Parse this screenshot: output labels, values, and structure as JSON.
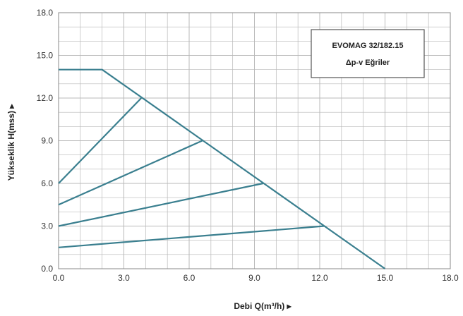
{
  "chart_data": {
    "type": "line",
    "title": "EVOMAG 32/182.15",
    "subtitle": "Δp-v Eğriler",
    "xlabel": "Debi Q(m³/h) ▸",
    "ylabel": "Yükseklik H(mss) ▸",
    "xlim": [
      0,
      18
    ],
    "ylim": [
      0,
      18
    ],
    "x_ticks": [
      "0.0",
      "3.0",
      "6.0",
      "9.0",
      "12.0",
      "15.0",
      "18.0"
    ],
    "y_ticks": [
      "0.0",
      "3.0",
      "6.0",
      "9.0",
      "12.0",
      "15.0",
      "18.0"
    ],
    "grid": true,
    "legend": "none",
    "colors": {
      "series": "#3a7f8f",
      "grid": "#b9b9b9",
      "frame": "#888888"
    },
    "series": [
      {
        "points": [
          [
            0,
            14
          ],
          [
            2,
            14
          ],
          [
            15,
            0
          ]
        ]
      },
      {
        "points": [
          [
            0,
            6
          ],
          [
            3.8,
            12
          ]
        ]
      },
      {
        "points": [
          [
            0,
            4.5
          ],
          [
            6.6,
            9
          ]
        ]
      },
      {
        "points": [
          [
            0,
            3
          ],
          [
            9.4,
            6
          ]
        ]
      },
      {
        "points": [
          [
            0,
            1.5
          ],
          [
            12.2,
            3
          ]
        ]
      }
    ]
  }
}
